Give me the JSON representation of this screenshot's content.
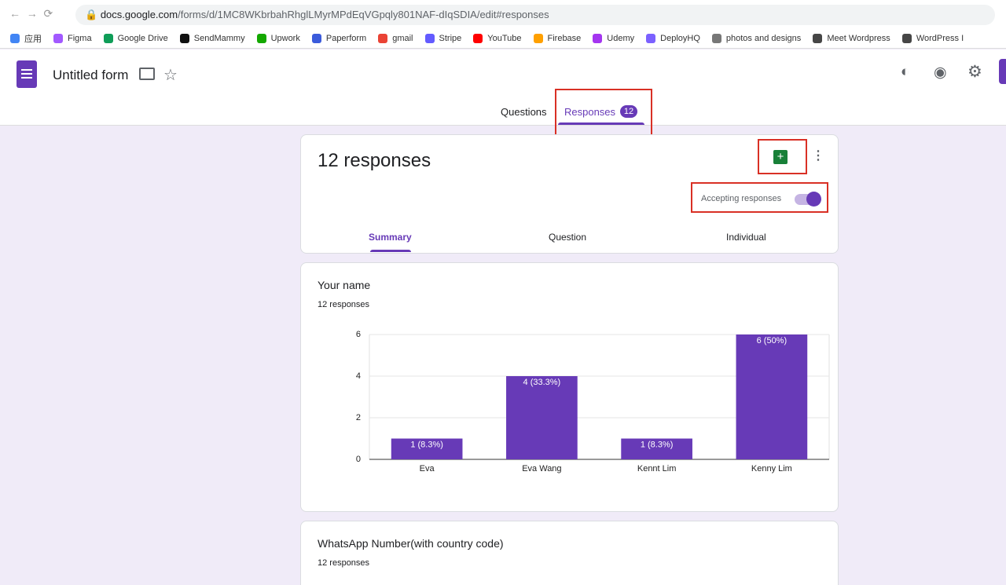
{
  "browser": {
    "url_host": "docs.google.com",
    "url_path": "/forms/d/1MC8WKbrbahRhglLMyrMPdEqVGpqly801NAF-dIqSDIA/edit#responses",
    "bookmarks": [
      "应用",
      "Figma",
      "Google Drive",
      "SendMammy",
      "Upwork",
      "Paperform",
      "gmail",
      "Stripe",
      "YouTube",
      "Firebase",
      "Udemy",
      "DeployHQ",
      "photos and designs",
      "Meet Wordpress",
      "WordPress I"
    ]
  },
  "header": {
    "form_title": "Untitled form",
    "tabs": [
      "Questions",
      "Responses"
    ],
    "responses_badge": "12"
  },
  "summary": {
    "title": "12 responses",
    "accepting": "Accepting responses",
    "subtabs": [
      "Summary",
      "Question",
      "Individual"
    ]
  },
  "questions": [
    {
      "title": "Your name",
      "count": "12 responses"
    },
    {
      "title": "WhatsApp Number(with country code)",
      "count": "12 responses"
    }
  ],
  "chart_data": {
    "type": "bar",
    "categories": [
      "Eva",
      "Eva Wang",
      "Kennt Lim",
      "Kenny Lim"
    ],
    "values": [
      1,
      4,
      1,
      6
    ],
    "value_labels": [
      "1 (8.3%)",
      "4 (33.3%)",
      "1 (8.3%)",
      "6 (50%)"
    ],
    "color": "#673ab7",
    "ylim": [
      0,
      6
    ],
    "yticks": [
      0,
      2,
      4,
      6
    ],
    "grid": true
  }
}
